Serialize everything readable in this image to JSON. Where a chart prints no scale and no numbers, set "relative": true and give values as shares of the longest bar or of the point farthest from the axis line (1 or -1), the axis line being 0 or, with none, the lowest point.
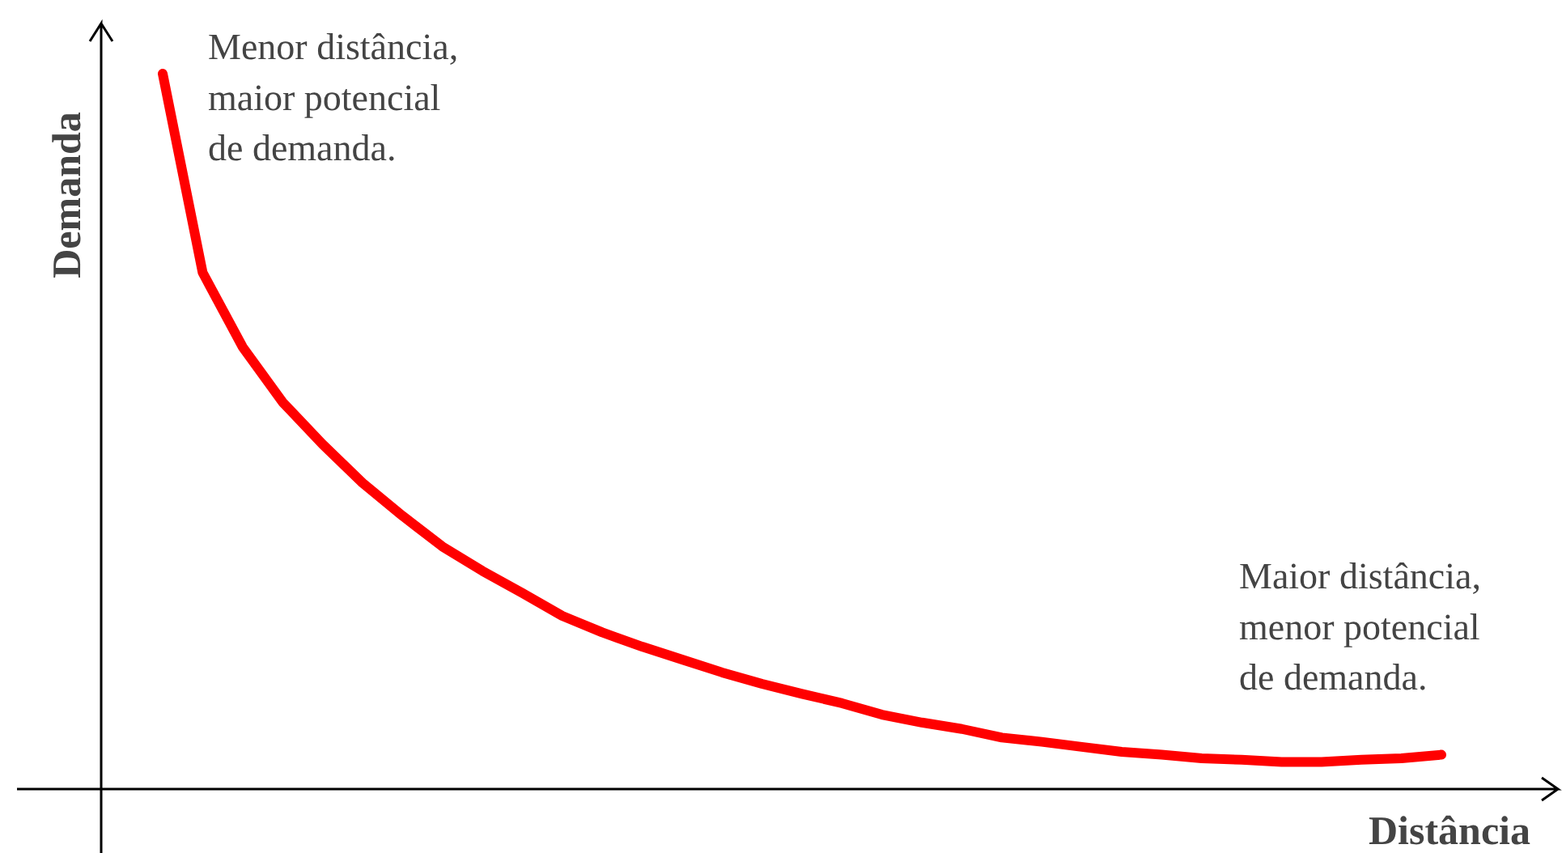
{
  "chart_data": {
    "type": "line",
    "relative": true,
    "xlabel": "Distância",
    "ylabel": "Demanda",
    "categories": [
      null,
      null,
      null,
      null,
      null,
      null,
      null,
      null,
      null,
      null,
      null,
      null,
      null,
      null,
      null,
      null,
      null,
      null,
      null,
      null,
      null,
      null,
      null,
      null,
      null,
      null,
      null,
      null,
      null,
      null,
      null,
      null,
      null
    ],
    "series": [
      {
        "color": "#ff0000",
        "values": [
          1.0,
          0.722,
          0.618,
          0.541,
          0.482,
          0.428,
          0.382,
          0.339,
          0.305,
          0.274,
          0.242,
          0.219,
          0.199,
          0.181,
          0.163,
          0.147,
          0.133,
          0.12,
          0.104,
          0.093,
          0.084,
          0.072,
          0.066,
          0.059,
          0.052,
          0.048,
          0.043,
          0.041,
          0.038,
          0.038,
          0.041,
          0.043,
          0.048
        ]
      }
    ],
    "annotations": [
      "Menor distância,\nmaior potencial\nde demanda.",
      "Maior distância,\nmenor potencial\nde demanda."
    ]
  }
}
